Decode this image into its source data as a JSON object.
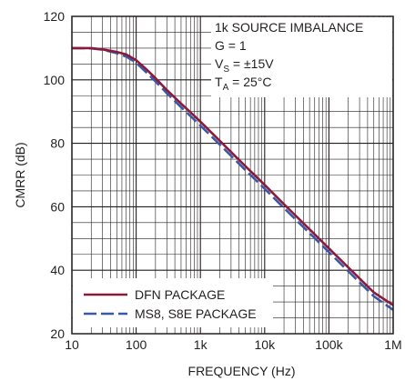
{
  "chart_data": {
    "type": "line",
    "xlabel": "FREQUENCY (Hz)",
    "ylabel": "CMRR (dB)",
    "x_scale": "log",
    "xlim": [
      10,
      1000000
    ],
    "ylim": [
      20,
      120
    ],
    "x_ticks": [
      10,
      100,
      1000,
      10000,
      100000,
      1000000
    ],
    "x_tick_labels": [
      "10",
      "100",
      "1k",
      "10k",
      "100k",
      "1M"
    ],
    "y_ticks": [
      20,
      40,
      60,
      80,
      100,
      120
    ],
    "y_tick_labels": [
      "20",
      "40",
      "60",
      "80",
      "100",
      "120"
    ],
    "grid": true,
    "legend_position": "bottom-left",
    "annotations": [
      {
        "main": "1k SOURCE IMBALANCE",
        "sub": ""
      },
      {
        "main": "G = 1",
        "sub": ""
      },
      {
        "main": "V",
        "sub": "S",
        "rest": " = ±15V"
      },
      {
        "main": "T",
        "sub": "A",
        "rest": " = 25°C"
      }
    ],
    "series": [
      {
        "name": "DFN PACKAGE",
        "color": "#8b1a3a",
        "style": "solid",
        "x": [
          10,
          20,
          30,
          50,
          70,
          100,
          150,
          200,
          300,
          500,
          700,
          1000,
          2000,
          5000,
          10000,
          20000,
          50000,
          100000,
          200000,
          500000,
          1000000
        ],
        "y": [
          110,
          110,
          109.6,
          108.8,
          108,
          106.2,
          103,
          100.5,
          96.8,
          92.5,
          89.8,
          86.8,
          80.8,
          72.8,
          66.9,
          60.8,
          52.9,
          46.9,
          40.9,
          33,
          29
        ]
      },
      {
        "name": "MS8, S8E PACKAGE",
        "color": "#3a58a8",
        "style": "dashed",
        "x": [
          10,
          20,
          30,
          50,
          70,
          100,
          150,
          200,
          300,
          500,
          700,
          1000,
          2000,
          5000,
          10000,
          20000,
          50000,
          100000,
          200000,
          500000,
          1000000
        ],
        "y": [
          110,
          109.9,
          109.5,
          108.4,
          107.3,
          105.4,
          102,
          99.5,
          95.8,
          91.4,
          88.6,
          85.6,
          79.6,
          71.6,
          65.7,
          59.6,
          51.7,
          45.7,
          39.7,
          31.8,
          27.5
        ]
      }
    ]
  }
}
